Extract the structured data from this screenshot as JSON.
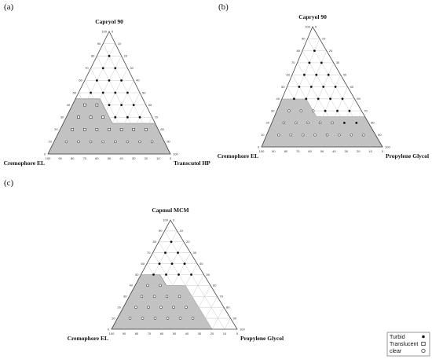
{
  "chart_data": [
    {
      "type": "ternary",
      "panel_label": "(a)",
      "axes": {
        "top": "Capryol 90",
        "left": "Cremophore EL",
        "right": "Transcutol HP"
      },
      "scale": [
        0,
        100
      ],
      "tick_step": 10,
      "tick_labels": [
        "0",
        "10",
        "20",
        "30",
        "40",
        "50",
        "60",
        "70",
        "80",
        "90",
        "100"
      ],
      "region_label": "Translucent",
      "region_polygon": [
        [
          0,
          100,
          0
        ],
        [
          45,
          55,
          0
        ],
        [
          45,
          35,
          20
        ],
        [
          25,
          35,
          40
        ],
        [
          25,
          0,
          75
        ],
        [
          0,
          0,
          100
        ]
      ],
      "points": [
        {
          "t": 10,
          "l": 80,
          "r": 10,
          "m": "clear"
        },
        {
          "t": 10,
          "l": 70,
          "r": 20,
          "m": "clear"
        },
        {
          "t": 10,
          "l": 60,
          "r": 30,
          "m": "clear"
        },
        {
          "t": 10,
          "l": 50,
          "r": 40,
          "m": "clear"
        },
        {
          "t": 10,
          "l": 40,
          "r": 50,
          "m": "clear"
        },
        {
          "t": 10,
          "l": 30,
          "r": 60,
          "m": "clear"
        },
        {
          "t": 10,
          "l": 20,
          "r": 70,
          "m": "clear"
        },
        {
          "t": 10,
          "l": 10,
          "r": 80,
          "m": "clear"
        },
        {
          "t": 20,
          "l": 70,
          "r": 10,
          "m": "translucent"
        },
        {
          "t": 20,
          "l": 60,
          "r": 20,
          "m": "translucent"
        },
        {
          "t": 20,
          "l": 50,
          "r": 30,
          "m": "translucent"
        },
        {
          "t": 20,
          "l": 40,
          "r": 40,
          "m": "translucent"
        },
        {
          "t": 20,
          "l": 30,
          "r": 50,
          "m": "translucent"
        },
        {
          "t": 20,
          "l": 20,
          "r": 60,
          "m": "translucent"
        },
        {
          "t": 20,
          "l": 10,
          "r": 70,
          "m": "translucent"
        },
        {
          "t": 30,
          "l": 60,
          "r": 10,
          "m": "translucent"
        },
        {
          "t": 30,
          "l": 50,
          "r": 20,
          "m": "translucent"
        },
        {
          "t": 30,
          "l": 40,
          "r": 30,
          "m": "translucent"
        },
        {
          "t": 30,
          "l": 30,
          "r": 40,
          "m": "turbid"
        },
        {
          "t": 30,
          "l": 20,
          "r": 50,
          "m": "turbid"
        },
        {
          "t": 30,
          "l": 10,
          "r": 60,
          "m": "turbid"
        },
        {
          "t": 40,
          "l": 50,
          "r": 10,
          "m": "translucent"
        },
        {
          "t": 40,
          "l": 40,
          "r": 20,
          "m": "translucent"
        },
        {
          "t": 40,
          "l": 30,
          "r": 30,
          "m": "turbid"
        },
        {
          "t": 40,
          "l": 20,
          "r": 40,
          "m": "turbid"
        },
        {
          "t": 40,
          "l": 10,
          "r": 50,
          "m": "turbid"
        },
        {
          "t": 50,
          "l": 40,
          "r": 10,
          "m": "turbid"
        },
        {
          "t": 50,
          "l": 30,
          "r": 20,
          "m": "turbid"
        },
        {
          "t": 50,
          "l": 20,
          "r": 30,
          "m": "turbid"
        },
        {
          "t": 50,
          "l": 10,
          "r": 40,
          "m": "turbid"
        },
        {
          "t": 60,
          "l": 30,
          "r": 10,
          "m": "turbid"
        },
        {
          "t": 60,
          "l": 20,
          "r": 20,
          "m": "turbid"
        },
        {
          "t": 60,
          "l": 10,
          "r": 30,
          "m": "turbid"
        },
        {
          "t": 70,
          "l": 20,
          "r": 10,
          "m": "turbid"
        },
        {
          "t": 70,
          "l": 10,
          "r": 20,
          "m": "turbid"
        },
        {
          "t": 80,
          "l": 10,
          "r": 10,
          "m": "turbid"
        }
      ]
    },
    {
      "type": "ternary",
      "panel_label": "(b)",
      "axes": {
        "top": "Capryol 90",
        "left": "Cremophore EL",
        "right": "Propylene Glycol"
      },
      "scale": [
        0,
        100
      ],
      "tick_step": 10,
      "tick_labels": [
        "0",
        "10",
        "20",
        "30",
        "40",
        "50",
        "60",
        "70",
        "80",
        "90",
        "100"
      ],
      "region_label": "Translucent",
      "region_polygon": [
        [
          0,
          100,
          0
        ],
        [
          40,
          60,
          0
        ],
        [
          40,
          40,
          20
        ],
        [
          25,
          40,
          35
        ],
        [
          25,
          0,
          75
        ],
        [
          0,
          0,
          100
        ]
      ],
      "points": [
        {
          "t": 10,
          "l": 80,
          "r": 10,
          "m": "clear"
        },
        {
          "t": 10,
          "l": 70,
          "r": 20,
          "m": "clear"
        },
        {
          "t": 10,
          "l": 60,
          "r": 30,
          "m": "clear"
        },
        {
          "t": 10,
          "l": 50,
          "r": 40,
          "m": "clear"
        },
        {
          "t": 10,
          "l": 40,
          "r": 50,
          "m": "clear"
        },
        {
          "t": 10,
          "l": 30,
          "r": 60,
          "m": "clear"
        },
        {
          "t": 10,
          "l": 20,
          "r": 70,
          "m": "clear"
        },
        {
          "t": 10,
          "l": 10,
          "r": 80,
          "m": "clear"
        },
        {
          "t": 20,
          "l": 70,
          "r": 10,
          "m": "clear"
        },
        {
          "t": 20,
          "l": 60,
          "r": 20,
          "m": "clear"
        },
        {
          "t": 20,
          "l": 50,
          "r": 30,
          "m": "clear"
        },
        {
          "t": 20,
          "l": 40,
          "r": 40,
          "m": "clear"
        },
        {
          "t": 20,
          "l": 30,
          "r": 50,
          "m": "clear"
        },
        {
          "t": 20,
          "l": 20,
          "r": 60,
          "m": "turbid"
        },
        {
          "t": 20,
          "l": 10,
          "r": 70,
          "m": "turbid"
        },
        {
          "t": 30,
          "l": 60,
          "r": 10,
          "m": "clear"
        },
        {
          "t": 30,
          "l": 50,
          "r": 20,
          "m": "clear"
        },
        {
          "t": 30,
          "l": 40,
          "r": 30,
          "m": "clear"
        },
        {
          "t": 30,
          "l": 30,
          "r": 40,
          "m": "turbid"
        },
        {
          "t": 30,
          "l": 20,
          "r": 50,
          "m": "turbid"
        },
        {
          "t": 30,
          "l": 10,
          "r": 60,
          "m": "turbid"
        },
        {
          "t": 40,
          "l": 50,
          "r": 10,
          "m": "turbid"
        },
        {
          "t": 40,
          "l": 40,
          "r": 20,
          "m": "turbid"
        },
        {
          "t": 40,
          "l": 30,
          "r": 30,
          "m": "turbid"
        },
        {
          "t": 40,
          "l": 20,
          "r": 40,
          "m": "turbid"
        },
        {
          "t": 40,
          "l": 10,
          "r": 50,
          "m": "turbid"
        },
        {
          "t": 50,
          "l": 40,
          "r": 10,
          "m": "turbid"
        },
        {
          "t": 50,
          "l": 30,
          "r": 20,
          "m": "turbid"
        },
        {
          "t": 50,
          "l": 20,
          "r": 30,
          "m": "turbid"
        },
        {
          "t": 50,
          "l": 10,
          "r": 40,
          "m": "turbid"
        },
        {
          "t": 60,
          "l": 30,
          "r": 10,
          "m": "turbid"
        },
        {
          "t": 60,
          "l": 20,
          "r": 20,
          "m": "turbid"
        },
        {
          "t": 60,
          "l": 10,
          "r": 30,
          "m": "turbid"
        },
        {
          "t": 70,
          "l": 20,
          "r": 10,
          "m": "turbid"
        },
        {
          "t": 70,
          "l": 10,
          "r": 20,
          "m": "turbid"
        },
        {
          "t": 80,
          "l": 10,
          "r": 10,
          "m": "turbid"
        }
      ]
    },
    {
      "type": "ternary",
      "panel_label": "(c)",
      "axes": {
        "top": "Capmul MCM",
        "left": "Cremophore EL",
        "right": "Propylene Glycol"
      },
      "scale": [
        0,
        100
      ],
      "tick_step": 10,
      "tick_labels": [
        "0",
        "10",
        "20",
        "30",
        "40",
        "50",
        "60",
        "70",
        "80",
        "90",
        "100"
      ],
      "region_label": "Translucent",
      "region_polygon": [
        [
          0,
          100,
          0
        ],
        [
          50,
          50,
          0
        ],
        [
          50,
          35,
          15
        ],
        [
          40,
          35,
          25
        ],
        [
          40,
          20,
          40
        ],
        [
          0,
          20,
          80
        ]
      ],
      "points": [
        {
          "t": 10,
          "l": 80,
          "r": 10,
          "m": "clear"
        },
        {
          "t": 10,
          "l": 70,
          "r": 20,
          "m": "clear"
        },
        {
          "t": 10,
          "l": 60,
          "r": 30,
          "m": "clear"
        },
        {
          "t": 10,
          "l": 50,
          "r": 40,
          "m": "clear"
        },
        {
          "t": 10,
          "l": 40,
          "r": 50,
          "m": "clear"
        },
        {
          "t": 10,
          "l": 30,
          "r": 60,
          "m": "clear"
        },
        {
          "t": 20,
          "l": 70,
          "r": 10,
          "m": "clear"
        },
        {
          "t": 20,
          "l": 60,
          "r": 20,
          "m": "clear"
        },
        {
          "t": 20,
          "l": 50,
          "r": 30,
          "m": "clear"
        },
        {
          "t": 20,
          "l": 40,
          "r": 40,
          "m": "clear"
        },
        {
          "t": 20,
          "l": 30,
          "r": 50,
          "m": "clear"
        },
        {
          "t": 30,
          "l": 60,
          "r": 10,
          "m": "clear"
        },
        {
          "t": 30,
          "l": 50,
          "r": 20,
          "m": "clear"
        },
        {
          "t": 30,
          "l": 40,
          "r": 30,
          "m": "clear"
        },
        {
          "t": 30,
          "l": 30,
          "r": 40,
          "m": "clear"
        },
        {
          "t": 40,
          "l": 50,
          "r": 10,
          "m": "clear"
        },
        {
          "t": 40,
          "l": 40,
          "r": 20,
          "m": "clear"
        },
        {
          "t": 50,
          "l": 40,
          "r": 10,
          "m": "turbid"
        },
        {
          "t": 50,
          "l": 30,
          "r": 20,
          "m": "turbid"
        },
        {
          "t": 50,
          "l": 20,
          "r": 30,
          "m": "turbid"
        },
        {
          "t": 50,
          "l": 10,
          "r": 40,
          "m": "turbid"
        },
        {
          "t": 60,
          "l": 30,
          "r": 10,
          "m": "turbid"
        },
        {
          "t": 60,
          "l": 20,
          "r": 20,
          "m": "turbid"
        },
        {
          "t": 60,
          "l": 10,
          "r": 30,
          "m": "turbid"
        },
        {
          "t": 70,
          "l": 20,
          "r": 10,
          "m": "turbid"
        },
        {
          "t": 70,
          "l": 10,
          "r": 20,
          "m": "turbid"
        },
        {
          "t": 80,
          "l": 10,
          "r": 10,
          "m": "turbid"
        }
      ]
    }
  ],
  "legend": {
    "items": [
      {
        "label": "Turbid",
        "marker": "filled-dot"
      },
      {
        "label": "Translucent",
        "marker": "open-square"
      },
      {
        "label": "clear",
        "marker": "open-circle"
      }
    ]
  },
  "colors": {
    "region": "#c2c2c2",
    "grid": "#c8c8c8",
    "outline": "#444444"
  }
}
